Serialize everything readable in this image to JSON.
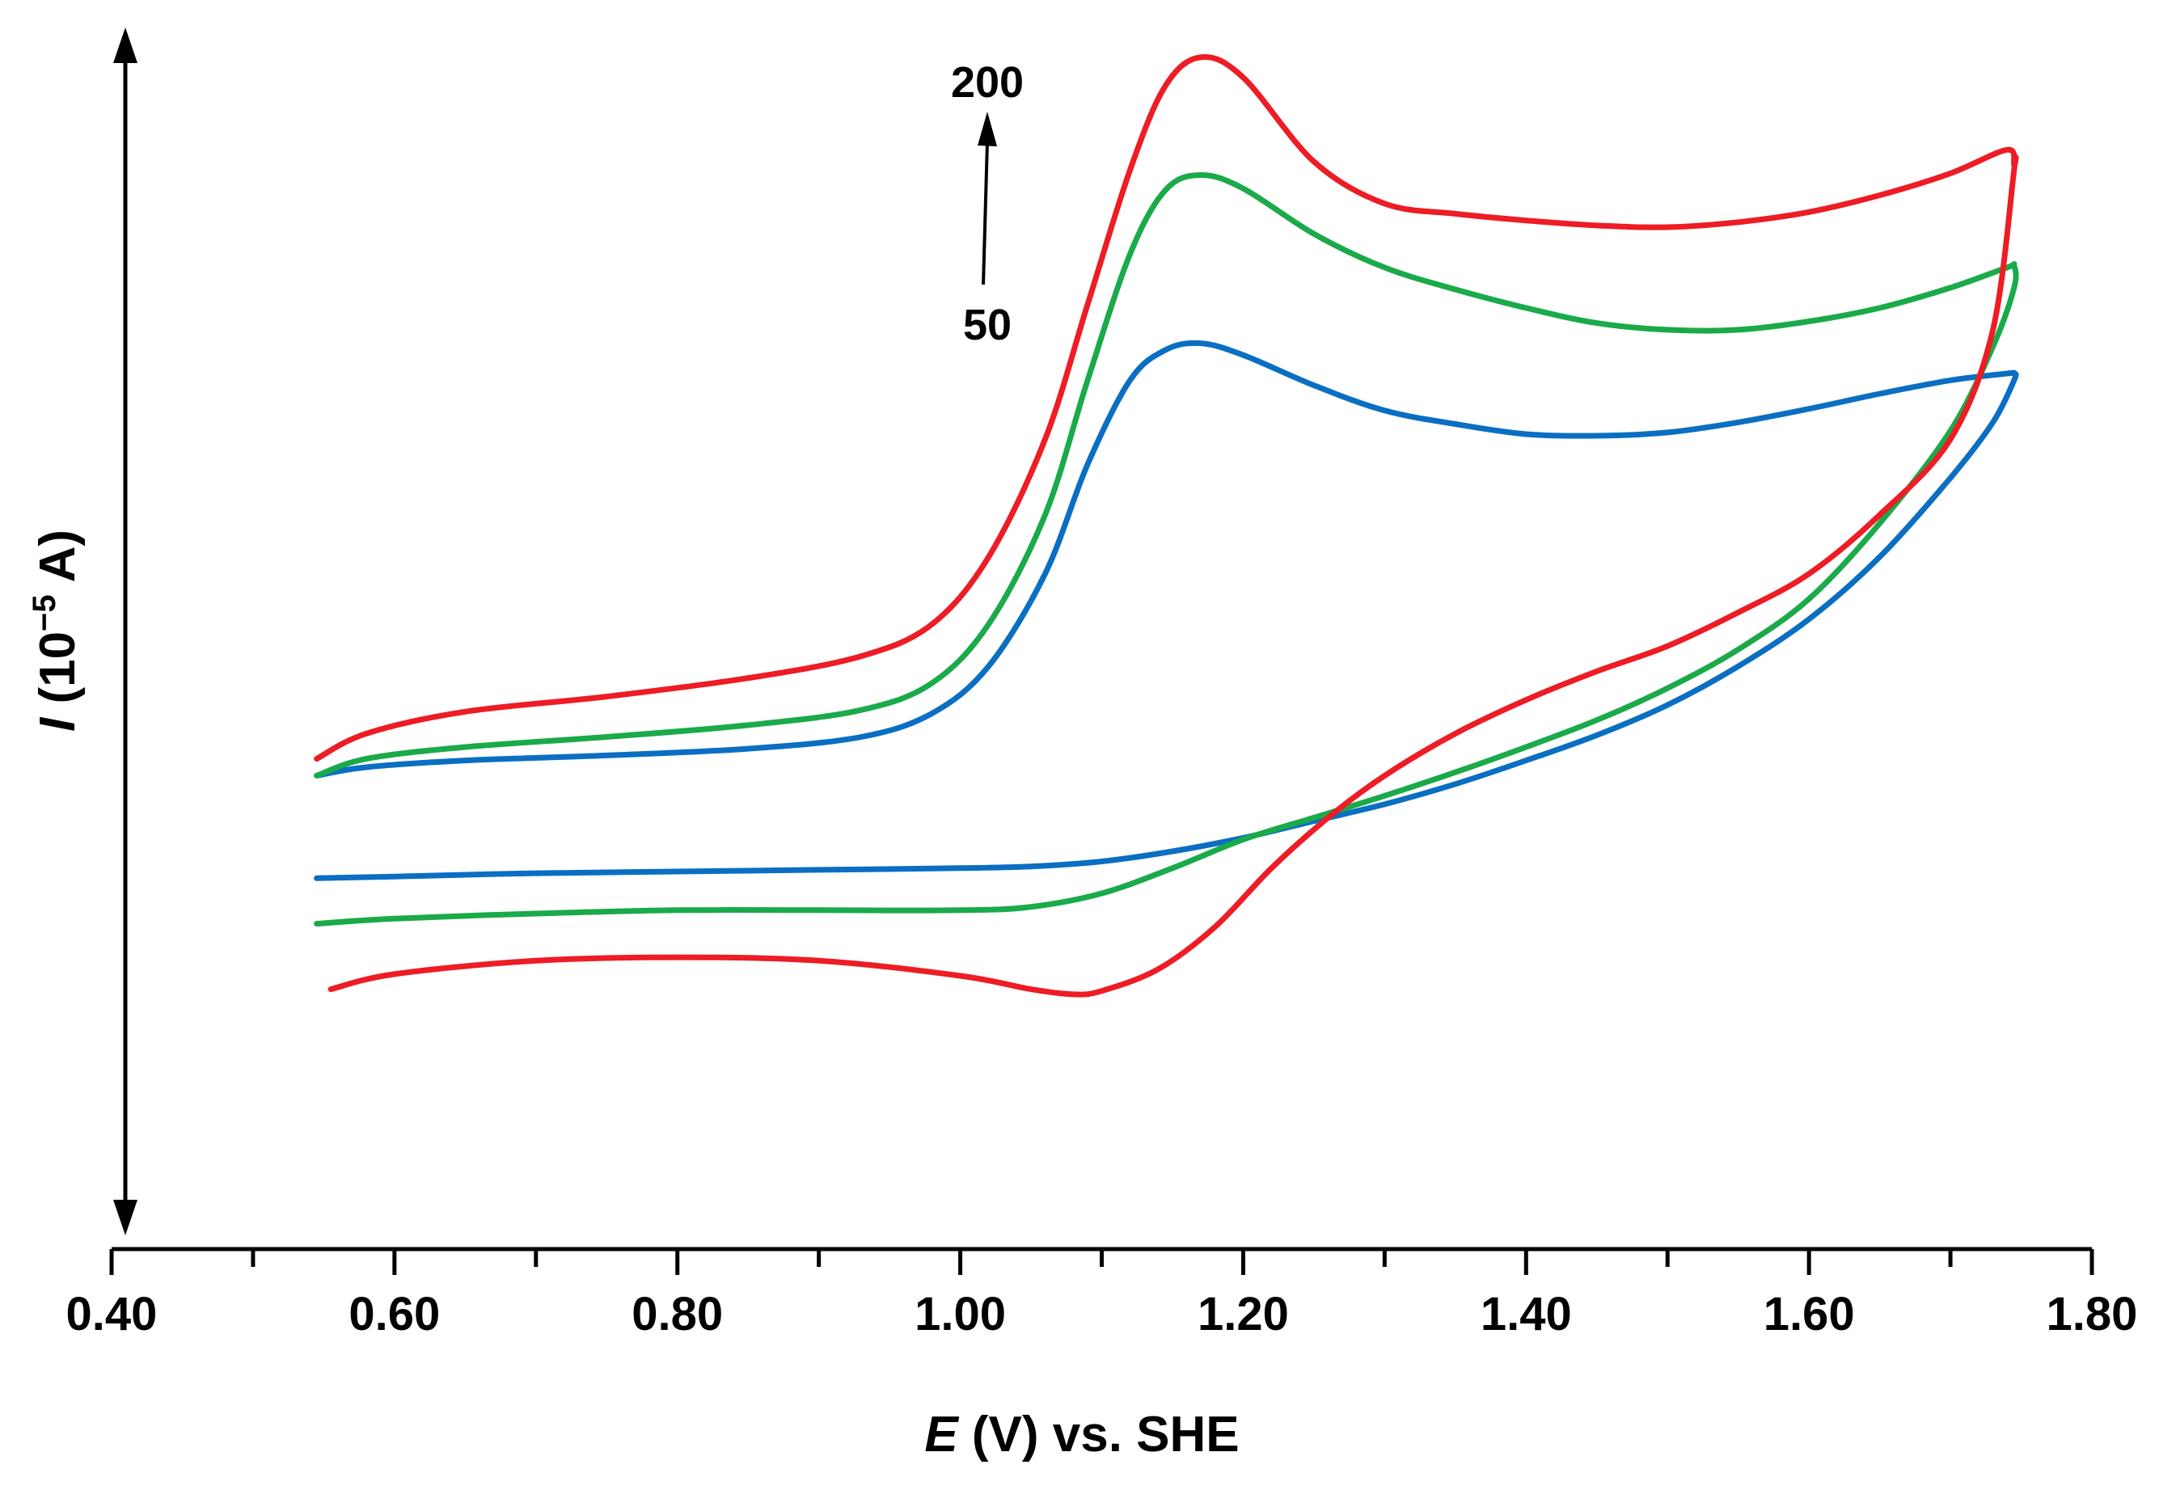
{
  "chart_data": {
    "type": "line",
    "xlabel": {
      "symbol": "E",
      "rest": " (V) vs. SHE"
    },
    "ylabel": {
      "symbol": "I",
      "rest": " (10",
      "sup": "−5",
      "after": " A)"
    },
    "x_ticks": [
      "0.40",
      "0.60",
      "0.80",
      "1.00",
      "1.20",
      "1.40",
      "1.60",
      "1.80"
    ],
    "x_tick_values": [
      0.4,
      0.6,
      0.8,
      1.0,
      1.2,
      1.4,
      1.6,
      1.8
    ],
    "xlim": [
      0.4,
      1.8
    ],
    "ylim": [
      -2.6,
      4.2
    ],
    "y_ticks_labeled": false,
    "y_axis_double_arrow": true,
    "grid": false,
    "annotation": {
      "low_label": "50",
      "high_label": "200",
      "direction": "increasing scan rate"
    },
    "series": [
      {
        "color": "#0a6fc2",
        "forward": [
          [
            0.545,
            -0.05
          ],
          [
            0.58,
            0.0
          ],
          [
            0.65,
            0.04
          ],
          [
            0.75,
            0.07
          ],
          [
            0.85,
            0.11
          ],
          [
            0.93,
            0.18
          ],
          [
            0.98,
            0.32
          ],
          [
            1.02,
            0.6
          ],
          [
            1.06,
            1.15
          ],
          [
            1.09,
            1.8
          ],
          [
            1.12,
            2.3
          ],
          [
            1.145,
            2.48
          ],
          [
            1.17,
            2.52
          ],
          [
            1.2,
            2.45
          ],
          [
            1.25,
            2.27
          ],
          [
            1.3,
            2.12
          ],
          [
            1.35,
            2.04
          ],
          [
            1.4,
            1.98
          ],
          [
            1.45,
            1.97
          ],
          [
            1.5,
            1.99
          ],
          [
            1.55,
            2.05
          ],
          [
            1.6,
            2.13
          ],
          [
            1.65,
            2.22
          ],
          [
            1.7,
            2.3
          ],
          [
            1.74,
            2.34
          ],
          [
            1.745,
            2.34
          ]
        ],
        "reverse": [
          [
            1.745,
            2.3
          ],
          [
            1.73,
            2.05
          ],
          [
            1.7,
            1.72
          ],
          [
            1.65,
            1.25
          ],
          [
            1.6,
            0.88
          ],
          [
            1.55,
            0.6
          ],
          [
            1.5,
            0.37
          ],
          [
            1.45,
            0.19
          ],
          [
            1.4,
            0.04
          ],
          [
            1.35,
            -0.1
          ],
          [
            1.3,
            -0.22
          ],
          [
            1.25,
            -0.32
          ],
          [
            1.2,
            -0.42
          ],
          [
            1.15,
            -0.5
          ],
          [
            1.1,
            -0.56
          ],
          [
            1.05,
            -0.59
          ],
          [
            1.0,
            -0.6
          ],
          [
            0.9,
            -0.61
          ],
          [
            0.8,
            -0.62
          ],
          [
            0.7,
            -0.63
          ],
          [
            0.6,
            -0.65
          ],
          [
            0.545,
            -0.66
          ]
        ]
      },
      {
        "color": "#1aaa4a",
        "forward": [
          [
            0.545,
            -0.05
          ],
          [
            0.58,
            0.05
          ],
          [
            0.65,
            0.12
          ],
          [
            0.75,
            0.18
          ],
          [
            0.85,
            0.25
          ],
          [
            0.93,
            0.34
          ],
          [
            0.98,
            0.5
          ],
          [
            1.02,
            0.85
          ],
          [
            1.06,
            1.5
          ],
          [
            1.09,
            2.3
          ],
          [
            1.12,
            3.05
          ],
          [
            1.145,
            3.43
          ],
          [
            1.17,
            3.52
          ],
          [
            1.2,
            3.44
          ],
          [
            1.25,
            3.17
          ],
          [
            1.3,
            2.97
          ],
          [
            1.35,
            2.84
          ],
          [
            1.4,
            2.73
          ],
          [
            1.45,
            2.64
          ],
          [
            1.5,
            2.6
          ],
          [
            1.55,
            2.6
          ],
          [
            1.6,
            2.65
          ],
          [
            1.65,
            2.73
          ],
          [
            1.7,
            2.85
          ],
          [
            1.74,
            2.97
          ],
          [
            1.745,
            2.98
          ]
        ],
        "reverse": [
          [
            1.745,
            2.85
          ],
          [
            1.73,
            2.5
          ],
          [
            1.7,
            2.0
          ],
          [
            1.65,
            1.45
          ],
          [
            1.6,
            1.0
          ],
          [
            1.55,
            0.7
          ],
          [
            1.5,
            0.47
          ],
          [
            1.45,
            0.28
          ],
          [
            1.4,
            0.12
          ],
          [
            1.35,
            -0.03
          ],
          [
            1.3,
            -0.17
          ],
          [
            1.25,
            -0.3
          ],
          [
            1.2,
            -0.43
          ],
          [
            1.15,
            -0.6
          ],
          [
            1.1,
            -0.75
          ],
          [
            1.05,
            -0.83
          ],
          [
            1.0,
            -0.85
          ],
          [
            0.9,
            -0.85
          ],
          [
            0.8,
            -0.85
          ],
          [
            0.7,
            -0.87
          ],
          [
            0.6,
            -0.9
          ],
          [
            0.545,
            -0.93
          ]
        ]
      },
      {
        "color": "#ee1c24",
        "forward": [
          [
            0.545,
            0.05
          ],
          [
            0.58,
            0.2
          ],
          [
            0.65,
            0.33
          ],
          [
            0.75,
            0.42
          ],
          [
            0.85,
            0.53
          ],
          [
            0.93,
            0.66
          ],
          [
            0.98,
            0.85
          ],
          [
            1.02,
            1.25
          ],
          [
            1.06,
            1.95
          ],
          [
            1.09,
            2.75
          ],
          [
            1.12,
            3.55
          ],
          [
            1.145,
            4.05
          ],
          [
            1.17,
            4.22
          ],
          [
            1.2,
            4.1
          ],
          [
            1.25,
            3.6
          ],
          [
            1.3,
            3.35
          ],
          [
            1.35,
            3.29
          ],
          [
            1.4,
            3.25
          ],
          [
            1.45,
            3.22
          ],
          [
            1.5,
            3.21
          ],
          [
            1.55,
            3.24
          ],
          [
            1.6,
            3.3
          ],
          [
            1.65,
            3.4
          ],
          [
            1.7,
            3.53
          ],
          [
            1.74,
            3.67
          ],
          [
            1.745,
            3.58
          ]
        ],
        "reverse": [
          [
            1.745,
            3.55
          ],
          [
            1.73,
            2.6
          ],
          [
            1.7,
            1.95
          ],
          [
            1.65,
            1.5
          ],
          [
            1.6,
            1.15
          ],
          [
            1.55,
            0.92
          ],
          [
            1.5,
            0.72
          ],
          [
            1.45,
            0.57
          ],
          [
            1.4,
            0.4
          ],
          [
            1.35,
            0.2
          ],
          [
            1.3,
            -0.05
          ],
          [
            1.26,
            -0.3
          ],
          [
            1.22,
            -0.6
          ],
          [
            1.18,
            -0.95
          ],
          [
            1.14,
            -1.2
          ],
          [
            1.1,
            -1.33
          ],
          [
            1.08,
            -1.35
          ],
          [
            1.05,
            -1.32
          ],
          [
            1.0,
            -1.24
          ],
          [
            0.9,
            -1.15
          ],
          [
            0.8,
            -1.13
          ],
          [
            0.7,
            -1.15
          ],
          [
            0.6,
            -1.23
          ],
          [
            0.555,
            -1.32
          ]
        ]
      }
    ]
  }
}
